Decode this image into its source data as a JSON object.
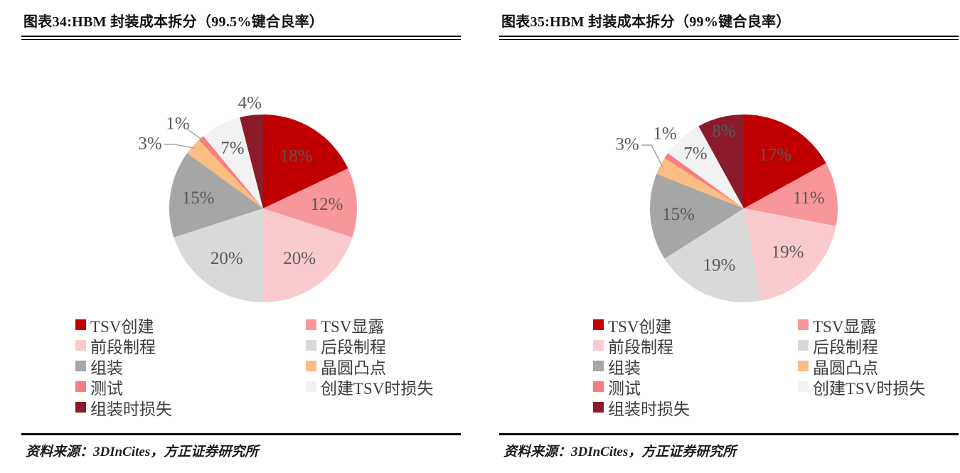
{
  "report": {
    "figures": [
      {
        "title": "图表34:HBM 封装成本拆分（99.5%键合良率）",
        "source": "资料来源：3DInCites，方正证券研究所"
      },
      {
        "title": "图表35:HBM 封装成本拆分（99%键合良率）",
        "source": "资料来源：3DInCites，方正证券研究所"
      }
    ]
  },
  "chart_data": [
    {
      "type": "pie",
      "title": "HBM 封装成本拆分（99.5%键合良率）",
      "unit": "%",
      "categories": [
        "TSV创建",
        "TSV显露",
        "前段制程",
        "后段制程",
        "组装",
        "晶圆凸点",
        "测试",
        "创建TSV时损失",
        "组装时损失"
      ],
      "keys": [
        "tsv-creation",
        "tsv-reveal",
        "front-end-process",
        "back-end-process",
        "assembly",
        "wafer-bump",
        "test",
        "tsv-creation-loss",
        "assembly-loss"
      ],
      "values": [
        18,
        12,
        20,
        20,
        15,
        3,
        1,
        7,
        4
      ],
      "colors": [
        "#c00000",
        "#f8979b",
        "#fbcace",
        "#d9d9d9",
        "#a6a6a6",
        "#fbbd82",
        "#f87d80",
        "#f2f2f2",
        "#8b1a2a"
      ],
      "label_color": "#595959",
      "leader_color": "#a6a6a6",
      "start_angle": 0,
      "clockwise": true,
      "legend_position": "bottom",
      "legend_columns": 2,
      "label_hints": [
        {
          "pos": "inside",
          "r": 0.66
        },
        {
          "pos": "inside",
          "r": 0.68
        },
        {
          "pos": "inside",
          "r": 0.66
        },
        {
          "pos": "inside",
          "r": 0.66
        },
        {
          "pos": "inside",
          "r": 0.7
        },
        {
          "pos": "leader",
          "offset": [
            -159,
            -91
          ],
          "leader": "elbow"
        },
        {
          "pos": "leader",
          "offset": [
            -120,
            -119
          ],
          "leader": "straight"
        },
        {
          "pos": "inside",
          "r": 0.72
        },
        {
          "pos": "outside",
          "r": 1.13
        }
      ]
    },
    {
      "type": "pie",
      "title": "HBM 封装成本拆分（99%键合良率）",
      "unit": "%",
      "categories": [
        "TSV创建",
        "TSV显露",
        "前段制程",
        "后段制程",
        "组装",
        "晶圆凸点",
        "测试",
        "创建TSV时损失",
        "组装时损失"
      ],
      "keys": [
        "tsv-creation",
        "tsv-reveal",
        "front-end-process",
        "back-end-process",
        "assembly",
        "wafer-bump",
        "test",
        "tsv-creation-loss",
        "assembly-loss"
      ],
      "values": [
        17,
        11,
        19,
        19,
        15,
        3,
        1,
        7,
        8
      ],
      "colors": [
        "#c00000",
        "#f8979b",
        "#fbcace",
        "#d9d9d9",
        "#a6a6a6",
        "#fbbd82",
        "#f87d80",
        "#f2f2f2",
        "#8b1a2a"
      ],
      "label_color": "#595959",
      "leader_color": "#a6a6a6",
      "start_angle": 0,
      "clockwise": true,
      "legend_position": "bottom",
      "legend_columns": 2,
      "label_hints": [
        {
          "pos": "inside",
          "r": 0.66
        },
        {
          "pos": "inside",
          "r": 0.7
        },
        {
          "pos": "inside",
          "r": 0.66
        },
        {
          "pos": "inside",
          "r": 0.66
        },
        {
          "pos": "inside",
          "r": 0.7
        },
        {
          "pos": "leader",
          "offset": [
            -164,
            -90
          ],
          "leader": "elbow"
        },
        {
          "pos": "outside",
          "offset": [
            -111,
            -105
          ]
        },
        {
          "pos": "inside",
          "r": 0.78
        },
        {
          "pos": "inside",
          "r": 0.85
        }
      ]
    }
  ]
}
